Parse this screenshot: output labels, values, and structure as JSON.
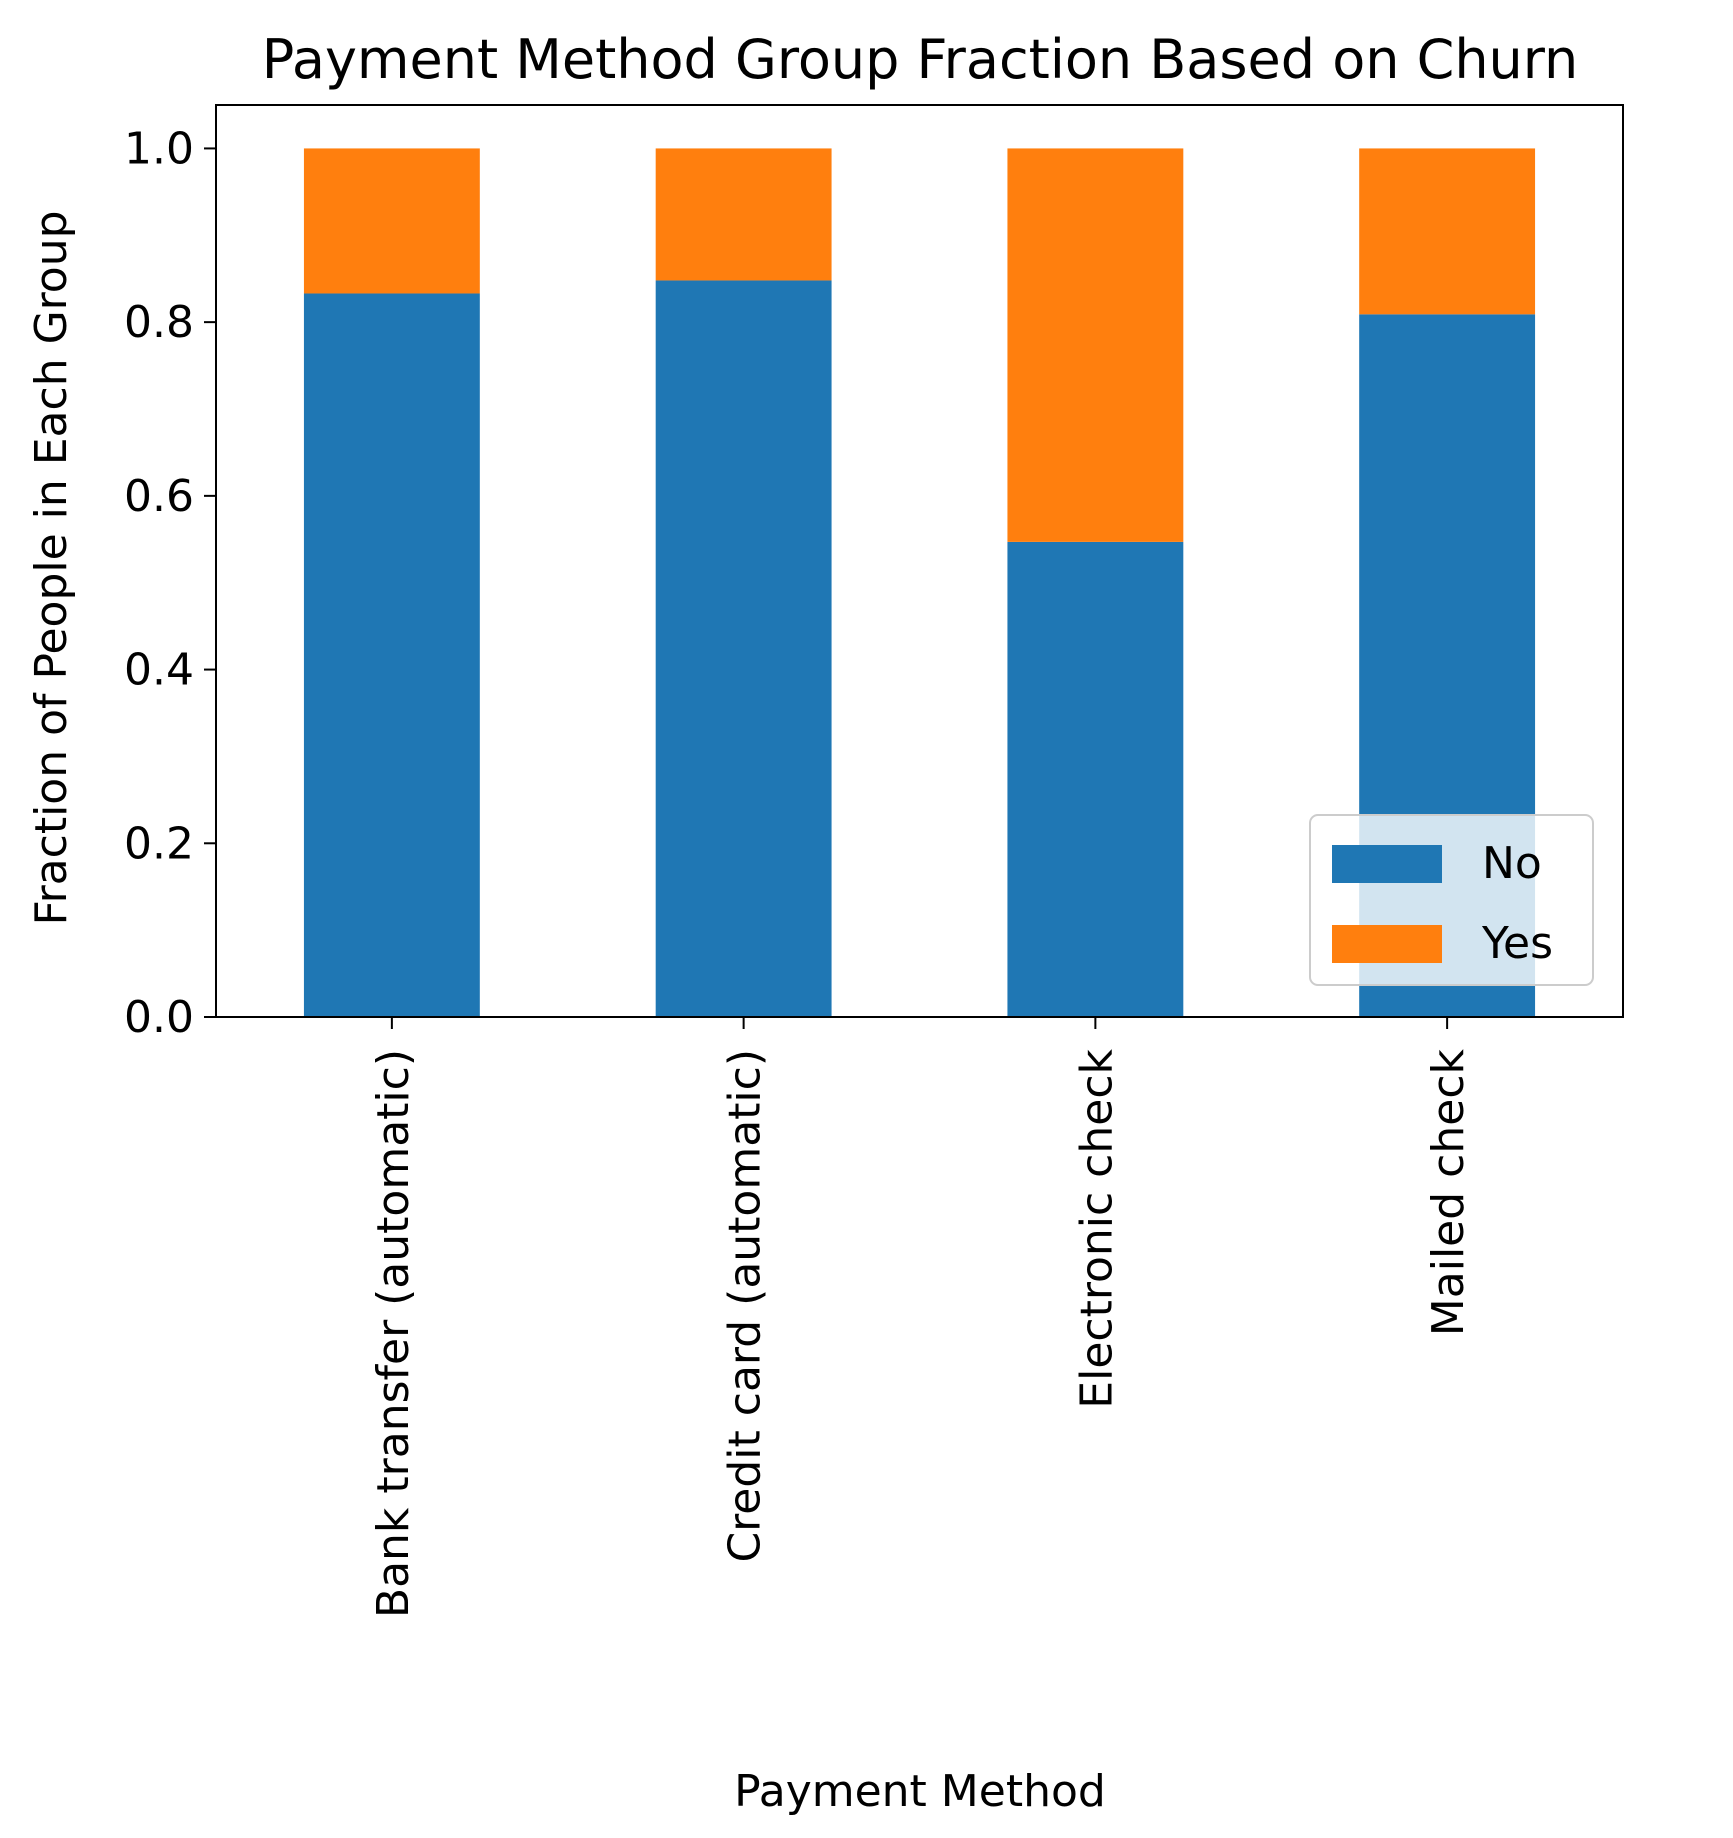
{
  "chart_data": {
    "type": "bar",
    "stacked": true,
    "title": "Payment Method Group Fraction Based on Churn",
    "xlabel": "Payment Method",
    "ylabel": "Fraction of People in Each Group",
    "categories": [
      "Bank transfer (automatic)",
      "Credit card (automatic)",
      "Electronic check",
      "Mailed check"
    ],
    "series": [
      {
        "name": "No",
        "color": "#1f77b4",
        "values": [
          0.833,
          0.848,
          0.547,
          0.809
        ]
      },
      {
        "name": "Yes",
        "color": "#ff7f0e",
        "values": [
          0.167,
          0.152,
          0.453,
          0.191
        ]
      }
    ],
    "ylim": [
      0,
      1.05
    ],
    "yticks": [
      0.0,
      0.2,
      0.4,
      0.6,
      0.8,
      1.0
    ],
    "ytick_labels": [
      "0.0",
      "0.2",
      "0.4",
      "0.6",
      "0.8",
      "1.0"
    ],
    "grid": false,
    "legend": {
      "placement": "lower-right",
      "entries": [
        "No",
        "Yes"
      ]
    }
  }
}
